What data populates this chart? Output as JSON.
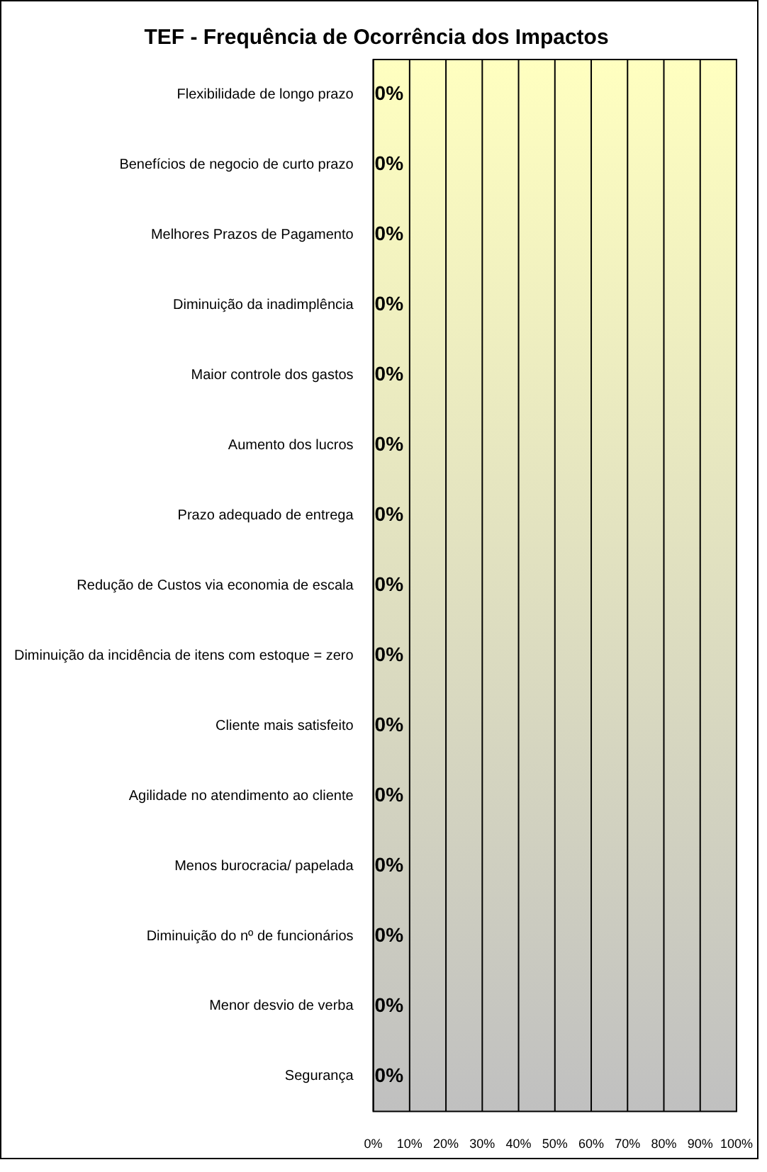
{
  "chart_data": {
    "type": "bar",
    "orientation": "horizontal",
    "title": "TEF - Frequência de Ocorrência dos Impactos",
    "categories": [
      "Flexibilidade de longo prazo",
      "Benefícios de negocio de curto prazo",
      "Melhores Prazos de Pagamento",
      "Diminuição da inadimplência",
      "Maior controle dos gastos",
      "Aumento dos lucros",
      "Prazo adequado de entrega",
      "Redução de Custos via economia de escala",
      "Diminuição da incidência de itens com estoque = zero",
      "Cliente mais satisfeito",
      "Agilidade no atendimento ao cliente",
      "Menos burocracia/ papelada",
      "Diminuição do nº de funcionários",
      "Menor desvio de verba",
      "Segurança"
    ],
    "values": [
      0,
      0,
      0,
      0,
      0,
      0,
      0,
      0,
      0,
      0,
      0,
      0,
      0,
      0,
      0
    ],
    "value_labels": [
      "0%",
      "0%",
      "0%",
      "0%",
      "0%",
      "0%",
      "0%",
      "0%",
      "0%",
      "0%",
      "0%",
      "0%",
      "0%",
      "0%",
      "0%"
    ],
    "xlim": [
      0,
      100
    ],
    "xticks": [
      {
        "value": 0,
        "label": "0%"
      },
      {
        "value": 10,
        "label": "10%"
      },
      {
        "value": 20,
        "label": "20%"
      },
      {
        "value": 30,
        "label": "30%"
      },
      {
        "value": 40,
        "label": "40%"
      },
      {
        "value": 50,
        "label": "50%"
      },
      {
        "value": 60,
        "label": "60%"
      },
      {
        "value": 70,
        "label": "70%"
      },
      {
        "value": 80,
        "label": "80%"
      },
      {
        "value": 90,
        "label": "90%"
      },
      {
        "value": 100,
        "label": "100%"
      }
    ],
    "grid": "x",
    "legend": false
  }
}
